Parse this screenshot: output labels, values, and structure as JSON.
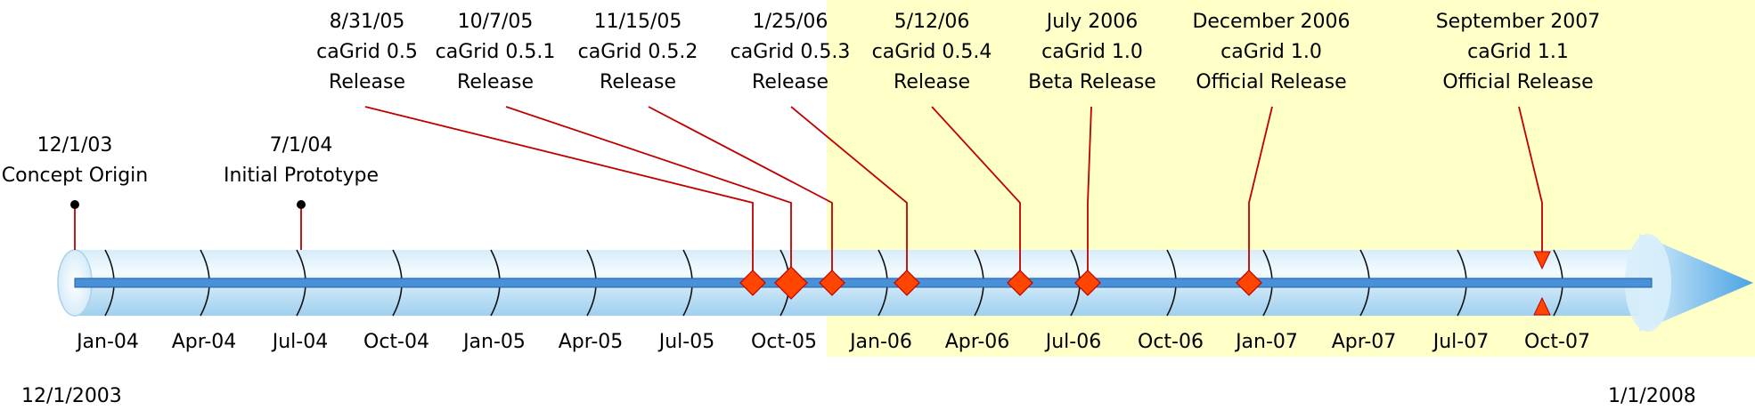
{
  "timeline": {
    "start_label": "12/1/2003",
    "end_label": "1/1/2008",
    "axis_ticks": [
      "Jan-04",
      "Apr-04",
      "Jul-04",
      "Oct-04",
      "Jan-05",
      "Apr-05",
      "Jul-05",
      "Oct-05",
      "Jan-06",
      "Apr-06",
      "Jul-06",
      "Oct-06",
      "Jan-07",
      "Apr-07",
      "Jul-07",
      "Oct-07"
    ],
    "events": [
      {
        "label_lines": [
          "12/1/03",
          "Concept Origin"
        ],
        "marker": "dot"
      },
      {
        "label_lines": [
          "7/1/04",
          "Initial Prototype"
        ],
        "marker": "dot"
      },
      {
        "label_lines": [
          "8/31/05",
          "caGrid 0.5",
          "Release"
        ],
        "marker": "diamond"
      },
      {
        "label_lines": [
          "10/7/05",
          "caGrid 0.5.1",
          "Release"
        ],
        "marker": "diamond-large"
      },
      {
        "label_lines": [
          "11/15/05",
          "caGrid 0.5.2",
          "Release"
        ],
        "marker": "diamond"
      },
      {
        "label_lines": [
          "1/25/06",
          "caGrid 0.5.3",
          "Release"
        ],
        "marker": "diamond"
      },
      {
        "label_lines": [
          "5/12/06",
          "caGrid 0.5.4",
          "Release"
        ],
        "marker": "diamond"
      },
      {
        "label_lines": [
          "July 2006",
          "caGrid 1.0",
          "Beta Release"
        ],
        "marker": "diamond"
      },
      {
        "label_lines": [
          "December 2006",
          "caGrid 1.0",
          "Official Release"
        ],
        "marker": "diamond"
      },
      {
        "label_lines": [
          "September 2007",
          "caGrid 1.1",
          "Official Release"
        ],
        "marker": "triangle-pair"
      }
    ]
  },
  "colors": {
    "highlight_region": "#ffffc8",
    "connector": "#c00000",
    "marker_fill": "#ff4500",
    "marker_stroke": "#c00000",
    "center_bar": "#4a90d9",
    "tube_light": "#eef7fd",
    "tube_mid": "#bfe0f5",
    "arrow_head": "#5aaae6"
  }
}
